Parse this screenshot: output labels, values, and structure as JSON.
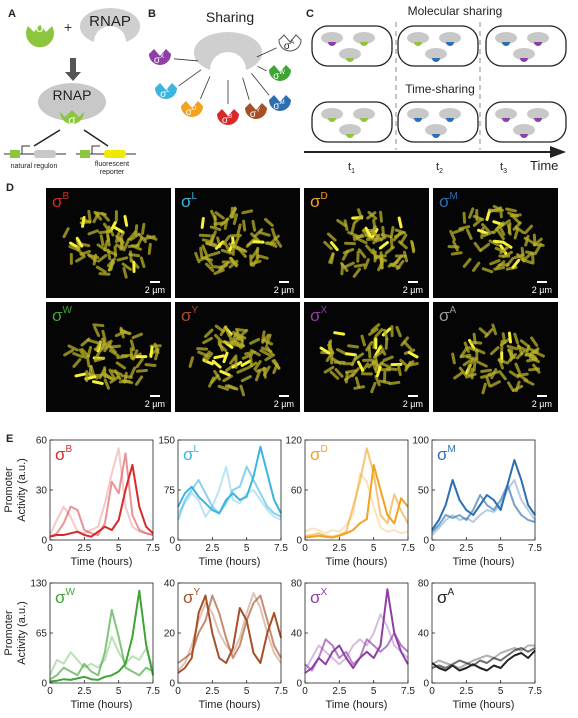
{
  "panels": {
    "A": {
      "letter": "A",
      "sigma_symbol": "σ",
      "plus": "+",
      "rnap_label": "RNAP",
      "natural_regulon": "natural regulon",
      "fluorescent_reporter_line1": "fluorescent",
      "fluorescent_reporter_line2": "reporter"
    },
    "B": {
      "letter": "B",
      "title": "Sharing",
      "sigmas": [
        {
          "sup": "X",
          "color": "#8e3fa3"
        },
        {
          "sup": "L",
          "color": "#3cb4e0"
        },
        {
          "sup": "D",
          "color": "#f2a21f"
        },
        {
          "sup": "B",
          "color": "#d8282b"
        },
        {
          "sup": "Y",
          "color": "#a6502a"
        },
        {
          "sup": "M",
          "color": "#2c6fb0"
        },
        {
          "sup": "W",
          "color": "#3ea535"
        },
        {
          "sup": "A",
          "color": "#ffffff"
        }
      ]
    },
    "C": {
      "letter": "C",
      "molecular_sharing": "Molecular sharing",
      "time_sharing": "Time-sharing",
      "time_axis": "Time",
      "t1": "t",
      "t1_sub": "1",
      "t2": "t",
      "t2_sub": "2",
      "t3": "t",
      "t3_sub": "3"
    },
    "D": {
      "letter": "D",
      "images": [
        {
          "sup": "B",
          "color": "#d8282b",
          "scale": "2 µm"
        },
        {
          "sup": "L",
          "color": "#3cb4e0",
          "scale": "2 µm"
        },
        {
          "sup": "D",
          "color": "#f2a21f",
          "scale": "2 µm"
        },
        {
          "sup": "M",
          "color": "#2c6fb0",
          "scale": "2 µm"
        },
        {
          "sup": "W",
          "color": "#3ea535",
          "scale": "2 µm"
        },
        {
          "sup": "Y",
          "color": "#a6502a",
          "scale": "2 µm"
        },
        {
          "sup": "X",
          "color": "#8e3fa3",
          "scale": "2 µm"
        },
        {
          "sup": "A",
          "color": "#9a9a9a",
          "scale": "2 µm"
        }
      ]
    },
    "E": {
      "letter": "E",
      "ylabel_line1": "Promoter",
      "ylabel_line2": "Activity (a.u.)",
      "xlabel": "Time (hours)",
      "xticks": [
        "0",
        "2.5",
        "5",
        "7.5"
      ]
    }
  },
  "chart_data": [
    {
      "type": "line",
      "sigma_sup": "B",
      "color": "#d8282b",
      "xlabel": "Time (hours)",
      "ylabel": "Promoter Activity (a.u.)",
      "xlim": [
        0,
        7.5
      ],
      "ylim": [
        0,
        60
      ],
      "yticks": [
        0,
        30,
        60
      ],
      "series": [
        {
          "opacity": 0.25,
          "x": [
            0,
            0.5,
            1,
            1.5,
            2,
            2.5,
            3,
            3.5,
            4,
            4.5,
            5,
            5.5,
            6,
            6.5,
            7,
            7.5
          ],
          "y": [
            3,
            12,
            20,
            14,
            5,
            4,
            6,
            8,
            22,
            40,
            55,
            20,
            8,
            5,
            4,
            3
          ]
        },
        {
          "opacity": 0.5,
          "x": [
            0,
            0.5,
            1,
            1.5,
            2,
            2.5,
            3,
            3.5,
            4,
            4.5,
            5,
            5.5,
            6,
            6.5,
            7,
            7.5
          ],
          "y": [
            2,
            4,
            10,
            20,
            18,
            6,
            4,
            3,
            10,
            35,
            28,
            52,
            15,
            6,
            4,
            3
          ]
        },
        {
          "opacity": 1.0,
          "x": [
            0,
            0.5,
            1,
            1.5,
            2,
            2.5,
            3,
            3.5,
            4,
            4.5,
            5,
            5.5,
            6,
            6.5,
            7,
            7.5
          ],
          "y": [
            2,
            3,
            3,
            4,
            5,
            3,
            2,
            5,
            8,
            6,
            12,
            30,
            45,
            20,
            8,
            4
          ]
        }
      ]
    },
    {
      "type": "line",
      "sigma_sup": "L",
      "color": "#3cb4e0",
      "xlabel": "Time (hours)",
      "ylabel": "Promoter Activity (a.u.)",
      "xlim": [
        0,
        7.5
      ],
      "ylim": [
        0,
        150
      ],
      "yticks": [
        0,
        75,
        150
      ],
      "series": [
        {
          "opacity": 0.35,
          "x": [
            0,
            0.5,
            1,
            1.5,
            2,
            2.5,
            3,
            3.5,
            4,
            4.5,
            5,
            5.5,
            6,
            6.5,
            7,
            7.5
          ],
          "y": [
            40,
            55,
            70,
            60,
            35,
            50,
            75,
            110,
            60,
            55,
            70,
            75,
            60,
            45,
            35,
            30
          ]
        },
        {
          "opacity": 0.6,
          "x": [
            0,
            0.5,
            1,
            1.5,
            2,
            2.5,
            3,
            3.5,
            4,
            4.5,
            5,
            5.5,
            6,
            6.5,
            7,
            7.5
          ],
          "y": [
            30,
            60,
            75,
            90,
            70,
            50,
            40,
            55,
            75,
            80,
            110,
            90,
            70,
            50,
            40,
            35
          ]
        },
        {
          "opacity": 1.0,
          "x": [
            0,
            0.5,
            1,
            1.5,
            2,
            2.5,
            3,
            3.5,
            4,
            4.5,
            5,
            5.5,
            6,
            6.5,
            7,
            7.5
          ],
          "y": [
            50,
            70,
            80,
            65,
            55,
            45,
            40,
            60,
            70,
            60,
            65,
            95,
            140,
            100,
            60,
            40
          ]
        }
      ]
    },
    {
      "type": "line",
      "sigma_sup": "D",
      "color": "#f2a21f",
      "xlabel": "Time (hours)",
      "ylabel": "Promoter Activity (a.u.)",
      "xlim": [
        0,
        7.5
      ],
      "ylim": [
        0,
        120
      ],
      "yticks": [
        0,
        60,
        120
      ],
      "series": [
        {
          "opacity": 0.3,
          "x": [
            0,
            0.5,
            1,
            1.5,
            2,
            2.5,
            3,
            3.5,
            4,
            4.5,
            5,
            5.5,
            6,
            6.5,
            7,
            7.5
          ],
          "y": [
            10,
            14,
            12,
            8,
            12,
            10,
            18,
            30,
            80,
            70,
            40,
            15,
            10,
            12,
            8,
            10
          ]
        },
        {
          "opacity": 0.6,
          "x": [
            0,
            0.5,
            1,
            1.5,
            2,
            2.5,
            3,
            3.5,
            4,
            4.5,
            5,
            5.5,
            6,
            6.5,
            7,
            7.5
          ],
          "y": [
            5,
            6,
            8,
            5,
            4,
            6,
            10,
            40,
            70,
            110,
            80,
            30,
            20,
            55,
            35,
            20
          ]
        },
        {
          "opacity": 1.0,
          "x": [
            0,
            0.5,
            1,
            1.5,
            2,
            2.5,
            3,
            3.5,
            4,
            4.5,
            5,
            5.5,
            6,
            6.5,
            7,
            7.5
          ],
          "y": [
            3,
            4,
            5,
            4,
            3,
            5,
            8,
            12,
            20,
            25,
            90,
            60,
            30,
            20,
            50,
            40
          ]
        }
      ]
    },
    {
      "type": "line",
      "sigma_sup": "M",
      "color": "#2c6fb0",
      "xlabel": "Time (hours)",
      "ylabel": "Promoter Activity (a.u.)",
      "xlim": [
        0,
        7.5
      ],
      "ylim": [
        0,
        100
      ],
      "yticks": [
        0,
        50,
        100
      ],
      "series": [
        {
          "opacity": 0.35,
          "x": [
            0,
            0.5,
            1,
            1.5,
            2,
            2.5,
            3,
            3.5,
            4,
            4.5,
            5,
            5.5,
            6,
            6.5,
            7,
            7.5
          ],
          "y": [
            5,
            12,
            20,
            25,
            20,
            22,
            18,
            25,
            30,
            28,
            35,
            50,
            60,
            40,
            30,
            20
          ]
        },
        {
          "opacity": 0.65,
          "x": [
            0,
            0.5,
            1,
            1.5,
            2,
            2.5,
            3,
            3.5,
            4,
            4.5,
            5,
            5.5,
            6,
            6.5,
            7,
            7.5
          ],
          "y": [
            8,
            15,
            25,
            22,
            25,
            20,
            30,
            45,
            35,
            30,
            40,
            55,
            35,
            25,
            20,
            18
          ]
        },
        {
          "opacity": 1.0,
          "x": [
            0,
            0.5,
            1,
            1.5,
            2,
            2.5,
            3,
            3.5,
            4,
            4.5,
            5,
            5.5,
            6,
            6.5,
            7,
            7.5
          ],
          "y": [
            10,
            20,
            35,
            60,
            40,
            30,
            25,
            35,
            45,
            40,
            30,
            55,
            80,
            60,
            35,
            25
          ]
        }
      ]
    },
    {
      "type": "line",
      "sigma_sup": "W",
      "color": "#3ea535",
      "xlabel": "Time (hours)",
      "ylabel": "Promoter Activity (a.u.)",
      "xlim": [
        0,
        7.5
      ],
      "ylim": [
        0,
        130
      ],
      "yticks": [
        0,
        65,
        130
      ],
      "series": [
        {
          "opacity": 0.35,
          "x": [
            0,
            0.5,
            1,
            1.5,
            2,
            2.5,
            3,
            3.5,
            4,
            4.5,
            5,
            5.5,
            6,
            6.5,
            7,
            7.5
          ],
          "y": [
            10,
            30,
            25,
            40,
            30,
            20,
            25,
            20,
            30,
            60,
            40,
            25,
            35,
            30,
            45,
            20
          ]
        },
        {
          "opacity": 0.65,
          "x": [
            0,
            0.5,
            1,
            1.5,
            2,
            2.5,
            3,
            3.5,
            4,
            4.5,
            5,
            5.5,
            6,
            6.5,
            7,
            7.5
          ],
          "y": [
            5,
            10,
            20,
            15,
            10,
            25,
            15,
            10,
            40,
            95,
            60,
            20,
            15,
            10,
            20,
            15
          ]
        },
        {
          "opacity": 1.0,
          "x": [
            0,
            0.5,
            1,
            1.5,
            2,
            2.5,
            3,
            3.5,
            4,
            4.5,
            5,
            5.5,
            6,
            6.5,
            7,
            7.5
          ],
          "y": [
            2,
            3,
            5,
            4,
            6,
            8,
            5,
            4,
            8,
            10,
            15,
            25,
            60,
            120,
            50,
            10
          ]
        }
      ]
    },
    {
      "type": "line",
      "sigma_sup": "Y",
      "color": "#a6502a",
      "xlabel": "Time (hours)",
      "ylabel": "Promoter Activity (a.u.)",
      "xlim": [
        0,
        7.5
      ],
      "ylim": [
        0,
        40
      ],
      "yticks": [
        0,
        20,
        40
      ],
      "series": [
        {
          "opacity": 0.35,
          "x": [
            0,
            0.5,
            1,
            1.5,
            2,
            2.5,
            3,
            3.5,
            4,
            4.5,
            5,
            5.5,
            6,
            6.5,
            7,
            7.5
          ],
          "y": [
            5,
            8,
            15,
            25,
            32,
            28,
            20,
            15,
            12,
            18,
            28,
            36,
            30,
            20,
            12,
            8
          ]
        },
        {
          "opacity": 0.65,
          "x": [
            0,
            0.5,
            1,
            1.5,
            2,
            2.5,
            3,
            3.5,
            4,
            4.5,
            5,
            5.5,
            6,
            6.5,
            7,
            7.5
          ],
          "y": [
            8,
            10,
            12,
            20,
            25,
            35,
            28,
            18,
            10,
            15,
            25,
            32,
            35,
            25,
            15,
            10
          ]
        },
        {
          "opacity": 1.0,
          "x": [
            0,
            0.5,
            1,
            1.5,
            2,
            2.5,
            3,
            3.5,
            4,
            4.5,
            5,
            5.5,
            6,
            6.5,
            7,
            7.5
          ],
          "y": [
            4,
            6,
            10,
            28,
            35,
            20,
            10,
            8,
            14,
            30,
            25,
            12,
            8,
            20,
            28,
            18
          ]
        }
      ]
    },
    {
      "type": "line",
      "sigma_sup": "X",
      "color": "#8e3fa3",
      "xlabel": "Time (hours)",
      "ylabel": "Promoter Activity (a.u.)",
      "xlim": [
        0,
        7.5
      ],
      "ylim": [
        0,
        80
      ],
      "yticks": [
        0,
        40,
        80
      ],
      "series": [
        {
          "opacity": 0.35,
          "x": [
            0,
            0.5,
            1,
            1.5,
            2,
            2.5,
            3,
            3.5,
            4,
            4.5,
            5,
            5.5,
            6,
            6.5,
            7,
            7.5
          ],
          "y": [
            10,
            20,
            30,
            25,
            20,
            15,
            20,
            30,
            35,
            30,
            40,
            55,
            45,
            30,
            25,
            20
          ]
        },
        {
          "opacity": 0.65,
          "x": [
            0,
            0.5,
            1,
            1.5,
            2,
            2.5,
            3,
            3.5,
            4,
            4.5,
            5,
            5.5,
            6,
            6.5,
            7,
            7.5
          ],
          "y": [
            15,
            10,
            20,
            35,
            30,
            20,
            25,
            15,
            20,
            35,
            30,
            25,
            30,
            40,
            30,
            25
          ]
        },
        {
          "opacity": 1.0,
          "x": [
            0,
            0.5,
            1,
            1.5,
            2,
            2.5,
            3,
            3.5,
            4,
            4.5,
            5,
            5.5,
            6,
            6.5,
            7,
            7.5
          ],
          "y": [
            8,
            12,
            20,
            15,
            25,
            30,
            20,
            12,
            20,
            25,
            20,
            30,
            75,
            40,
            25,
            15
          ]
        }
      ]
    },
    {
      "type": "line",
      "sigma_sup": "A",
      "color": "#222222",
      "xlabel": "Time (hours)",
      "ylabel": "Promoter Activity (a.u.)",
      "xlim": [
        0,
        7.5
      ],
      "ylim": [
        0,
        80
      ],
      "yticks": [
        0,
        40,
        80
      ],
      "series": [
        {
          "opacity": 0.35,
          "x": [
            0,
            0.5,
            1,
            1.5,
            2,
            2.5,
            3,
            3.5,
            4,
            4.5,
            5,
            5.5,
            6,
            6.5,
            7,
            7.5
          ],
          "y": [
            15,
            18,
            16,
            14,
            12,
            15,
            18,
            20,
            22,
            20,
            24,
            26,
            28,
            26,
            30,
            30
          ]
        },
        {
          "opacity": 0.65,
          "x": [
            0,
            0.5,
            1,
            1.5,
            2,
            2.5,
            3,
            3.5,
            4,
            4.5,
            5,
            5.5,
            6,
            6.5,
            7,
            7.5
          ],
          "y": [
            12,
            14,
            12,
            15,
            18,
            16,
            14,
            18,
            16,
            20,
            18,
            22,
            26,
            28,
            25,
            28
          ]
        },
        {
          "opacity": 1.0,
          "x": [
            0,
            0.5,
            1,
            1.5,
            2,
            2.5,
            3,
            3.5,
            4,
            4.5,
            5,
            5.5,
            6,
            6.5,
            7,
            7.5
          ],
          "y": [
            16,
            12,
            10,
            14,
            10,
            12,
            15,
            12,
            10,
            14,
            12,
            18,
            22,
            24,
            20,
            26
          ]
        }
      ]
    }
  ]
}
